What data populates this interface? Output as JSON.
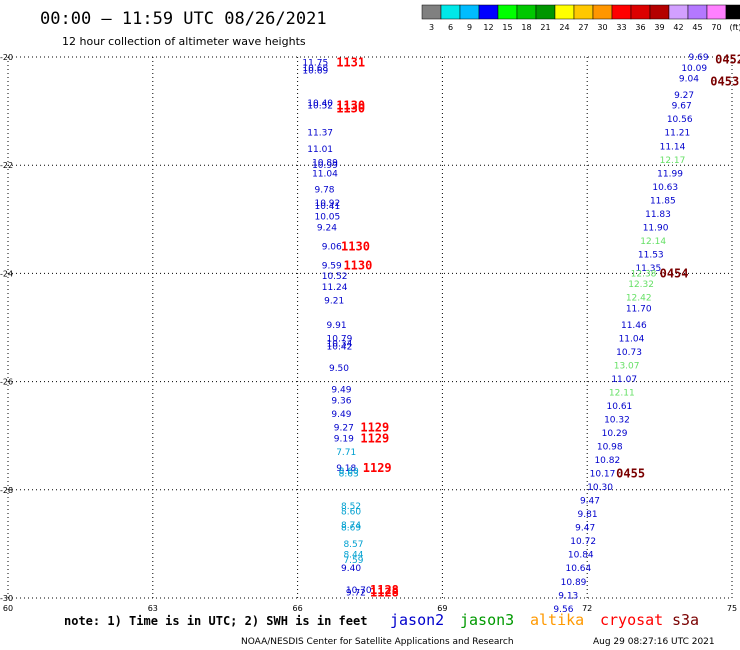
{
  "header": {
    "title": "00:00 – 11:59 UTC 08/26/2021",
    "subtitle": "12 hour collection of altimeter wave heights"
  },
  "colorbar": {
    "labels": [
      "3",
      "6",
      "9",
      "12",
      "15",
      "18",
      "21",
      "24",
      "27",
      "30",
      "33",
      "36",
      "39",
      "42",
      "45",
      "70",
      "(ft)"
    ],
    "colors": [
      "#808080",
      "#00e8e8",
      "#00bcff",
      "#0000ff",
      "#00ff00",
      "#00c800",
      "#009600",
      "#ffff00",
      "#ffc800",
      "#ff9600",
      "#ff0000",
      "#dc0000",
      "#b40000",
      "#d2a0ff",
      "#b478ff",
      "#ff80ff",
      "#000000"
    ]
  },
  "footer": {
    "note": "note: 1) Time is in UTC; 2) SWH is in feet",
    "legend": [
      {
        "label": "jason2",
        "color": "#0000cc"
      },
      {
        "label": "jason3",
        "color": "#009900"
      },
      {
        "label": "altika",
        "color": "#ff9900"
      },
      {
        "label": "cryosat",
        "color": "#ff0000"
      },
      {
        "label": "s3a",
        "color": "#7a0000"
      }
    ],
    "credit": "NOAA/NESDIS Center for Satellite Applications and Research",
    "timestamp": "Aug 29 08:27:16 UTC 2021"
  },
  "chart_data": {
    "type": "scatter",
    "xlim": [
      60,
      75
    ],
    "ylim": [
      -30,
      -20
    ],
    "xticks": [
      "60",
      "63",
      "66",
      "69",
      "72",
      "75"
    ],
    "yticks": [
      "-20",
      "-22",
      "-24",
      "-26",
      "-28",
      "-30"
    ],
    "grid": true,
    "series": [
      {
        "name": "jason2",
        "color": "#0000cc",
        "points": [
          {
            "x": 66.1,
            "y": -20.1,
            "label": "11.75"
          },
          {
            "x": 66.1,
            "y": -20.2,
            "label": "10.68"
          },
          {
            "x": 66.1,
            "y": -20.25,
            "label": "10.69"
          },
          {
            "x": 66.2,
            "y": -20.85,
            "label": "10.40"
          },
          {
            "x": 66.2,
            "y": -20.9,
            "label": "10.52"
          },
          {
            "x": 66.2,
            "y": -21.4,
            "label": "11.37"
          },
          {
            "x": 66.2,
            "y": -21.7,
            "label": "11.01"
          },
          {
            "x": 66.3,
            "y": -21.95,
            "label": "10.89"
          },
          {
            "x": 66.3,
            "y": -22.0,
            "label": "10.99"
          },
          {
            "x": 66.3,
            "y": -22.15,
            "label": "11.04"
          },
          {
            "x": 66.35,
            "y": -22.45,
            "label": "9.78"
          },
          {
            "x": 66.35,
            "y": -22.7,
            "label": "10.92"
          },
          {
            "x": 66.35,
            "y": -22.75,
            "label": "10.41"
          },
          {
            "x": 66.35,
            "y": -22.95,
            "label": "10.05"
          },
          {
            "x": 66.4,
            "y": -23.15,
            "label": "9.24"
          },
          {
            "x": 66.5,
            "y": -23.5,
            "label": "9.06"
          },
          {
            "x": 66.5,
            "y": -23.85,
            "label": "9.59"
          },
          {
            "x": 66.5,
            "y": -24.05,
            "label": "10.52"
          },
          {
            "x": 66.5,
            "y": -24.25,
            "label": "11.24"
          },
          {
            "x": 66.55,
            "y": -24.5,
            "label": "9.21"
          },
          {
            "x": 66.6,
            "y": -24.95,
            "label": "9.91"
          },
          {
            "x": 66.6,
            "y": -25.2,
            "label": "10.79"
          },
          {
            "x": 66.6,
            "y": -25.3,
            "label": "10.34"
          },
          {
            "x": 66.6,
            "y": -25.35,
            "label": "10.42"
          },
          {
            "x": 66.65,
            "y": -25.75,
            "label": "9.50"
          },
          {
            "x": 66.7,
            "y": -26.15,
            "label": "9.49"
          },
          {
            "x": 66.7,
            "y": -26.35,
            "label": "9.36"
          },
          {
            "x": 66.7,
            "y": -26.6,
            "label": "9.49"
          },
          {
            "x": 66.75,
            "y": -26.85,
            "label": "9.27"
          },
          {
            "x": 66.75,
            "y": -27.05,
            "label": "9.19"
          },
          {
            "x": 66.8,
            "y": -27.6,
            "label": "9.18"
          },
          {
            "x": 66.9,
            "y": -29.45,
            "label": "9.40"
          },
          {
            "x": 67.0,
            "y": -29.85,
            "label": "10.70"
          },
          {
            "x": 67.0,
            "y": -29.9,
            "label": "9.72"
          },
          {
            "x": 74.1,
            "y": -20.0,
            "label": "9.69"
          },
          {
            "x": 73.95,
            "y": -20.2,
            "label": "10.09"
          },
          {
            "x": 73.9,
            "y": -20.4,
            "label": "9.04"
          },
          {
            "x": 73.8,
            "y": -20.7,
            "label": "9.27"
          },
          {
            "x": 73.75,
            "y": -20.9,
            "label": "9.67"
          },
          {
            "x": 73.65,
            "y": -21.15,
            "label": "10.56"
          },
          {
            "x": 73.6,
            "y": -21.4,
            "label": "11.21"
          },
          {
            "x": 73.5,
            "y": -21.65,
            "label": "11.14"
          },
          {
            "x": 73.45,
            "y": -22.15,
            "label": "11.99"
          },
          {
            "x": 73.35,
            "y": -22.4,
            "label": "10.63"
          },
          {
            "x": 73.3,
            "y": -22.65,
            "label": "11.85"
          },
          {
            "x": 73.2,
            "y": -22.9,
            "label": "11.83"
          },
          {
            "x": 73.15,
            "y": -23.15,
            "label": "11.90"
          },
          {
            "x": 73.05,
            "y": -23.65,
            "label": "11.53"
          },
          {
            "x": 73.0,
            "y": -23.9,
            "label": "11.35"
          },
          {
            "x": 72.8,
            "y": -24.65,
            "label": "11.70"
          },
          {
            "x": 72.7,
            "y": -24.95,
            "label": "11.46"
          },
          {
            "x": 72.65,
            "y": -25.2,
            "label": "11.04"
          },
          {
            "x": 72.6,
            "y": -25.45,
            "label": "10.73"
          },
          {
            "x": 72.5,
            "y": -25.95,
            "label": "11.07"
          },
          {
            "x": 72.4,
            "y": -26.45,
            "label": "10.61"
          },
          {
            "x": 72.35,
            "y": -26.7,
            "label": "10.32"
          },
          {
            "x": 72.3,
            "y": -26.95,
            "label": "10.29"
          },
          {
            "x": 72.2,
            "y": -27.2,
            "label": "10.98"
          },
          {
            "x": 72.15,
            "y": -27.45,
            "label": "10.82"
          },
          {
            "x": 72.05,
            "y": -27.7,
            "label": "10.17"
          },
          {
            "x": 72.0,
            "y": -27.95,
            "label": "10.30"
          },
          {
            "x": 71.85,
            "y": -28.2,
            "label": "9.47"
          },
          {
            "x": 71.8,
            "y": -28.45,
            "label": "9.81"
          },
          {
            "x": 71.75,
            "y": -28.7,
            "label": "9.47"
          },
          {
            "x": 71.65,
            "y": -28.95,
            "label": "10.72"
          },
          {
            "x": 71.6,
            "y": -29.2,
            "label": "10.84"
          },
          {
            "x": 71.55,
            "y": -29.45,
            "label": "10.64"
          },
          {
            "x": 71.45,
            "y": -29.7,
            "label": "10.89"
          },
          {
            "x": 71.4,
            "y": -29.95,
            "label": "9.13"
          },
          {
            "x": 71.3,
            "y": -30.2,
            "label": "9.56"
          }
        ]
      },
      {
        "name": "jason3",
        "color": "#66e066",
        "points": [
          {
            "x": 73.5,
            "y": -21.9,
            "label": "12.17"
          },
          {
            "x": 73.1,
            "y": -23.4,
            "label": "12.14"
          },
          {
            "x": 72.9,
            "y": -24.0,
            "label": "12.38"
          },
          {
            "x": 72.85,
            "y": -24.2,
            "label": "12.32"
          },
          {
            "x": 72.8,
            "y": -24.45,
            "label": "12.42"
          },
          {
            "x": 72.55,
            "y": -25.7,
            "label": "13.07"
          },
          {
            "x": 72.45,
            "y": -26.2,
            "label": "12.11"
          }
        ]
      },
      {
        "name": "cyan",
        "color": "#00a0d0",
        "points": [
          {
            "x": 66.8,
            "y": -27.3,
            "label": "7.71"
          },
          {
            "x": 66.85,
            "y": -27.65,
            "label": "8.60"
          },
          {
            "x": 66.85,
            "y": -27.7,
            "label": "8.63"
          },
          {
            "x": 66.9,
            "y": -28.3,
            "label": "8.52"
          },
          {
            "x": 66.9,
            "y": -28.4,
            "label": "8.60"
          },
          {
            "x": 66.9,
            "y": -28.65,
            "label": "8.74"
          },
          {
            "x": 66.9,
            "y": -28.7,
            "label": "8.69"
          },
          {
            "x": 66.95,
            "y": -29.0,
            "label": "8.57"
          },
          {
            "x": 66.95,
            "y": -29.2,
            "label": "8.44"
          },
          {
            "x": 66.95,
            "y": -29.3,
            "label": "7.59"
          }
        ]
      }
    ],
    "pass_labels": [
      {
        "x": 66.8,
        "y": -20.1,
        "label": "1131",
        "color": "#ff0000"
      },
      {
        "x": 66.8,
        "y": -20.9,
        "label": "1130",
        "color": "#ff0000"
      },
      {
        "x": 66.8,
        "y": -20.95,
        "label": "1130",
        "color": "#ff0000"
      },
      {
        "x": 66.9,
        "y": -23.5,
        "label": "1130",
        "color": "#ff0000"
      },
      {
        "x": 66.95,
        "y": -23.85,
        "label": "1130",
        "color": "#ff0000"
      },
      {
        "x": 67.3,
        "y": -26.85,
        "label": "1129",
        "color": "#ff0000"
      },
      {
        "x": 67.3,
        "y": -27.05,
        "label": "1129",
        "color": "#ff0000"
      },
      {
        "x": 67.35,
        "y": -27.6,
        "label": "1129",
        "color": "#ff0000"
      },
      {
        "x": 67.5,
        "y": -29.85,
        "label": "1128",
        "color": "#ff0000"
      },
      {
        "x": 67.5,
        "y": -29.9,
        "label": "1128",
        "color": "#ff0000"
      },
      {
        "x": 74.65,
        "y": -20.05,
        "label": "0452",
        "color": "#7a0000"
      },
      {
        "x": 74.55,
        "y": -20.45,
        "label": "0453",
        "color": "#7a0000"
      },
      {
        "x": 73.5,
        "y": -24.0,
        "label": "0454",
        "color": "#7a0000"
      },
      {
        "x": 72.6,
        "y": -27.7,
        "label": "0455",
        "color": "#7a0000"
      }
    ]
  }
}
